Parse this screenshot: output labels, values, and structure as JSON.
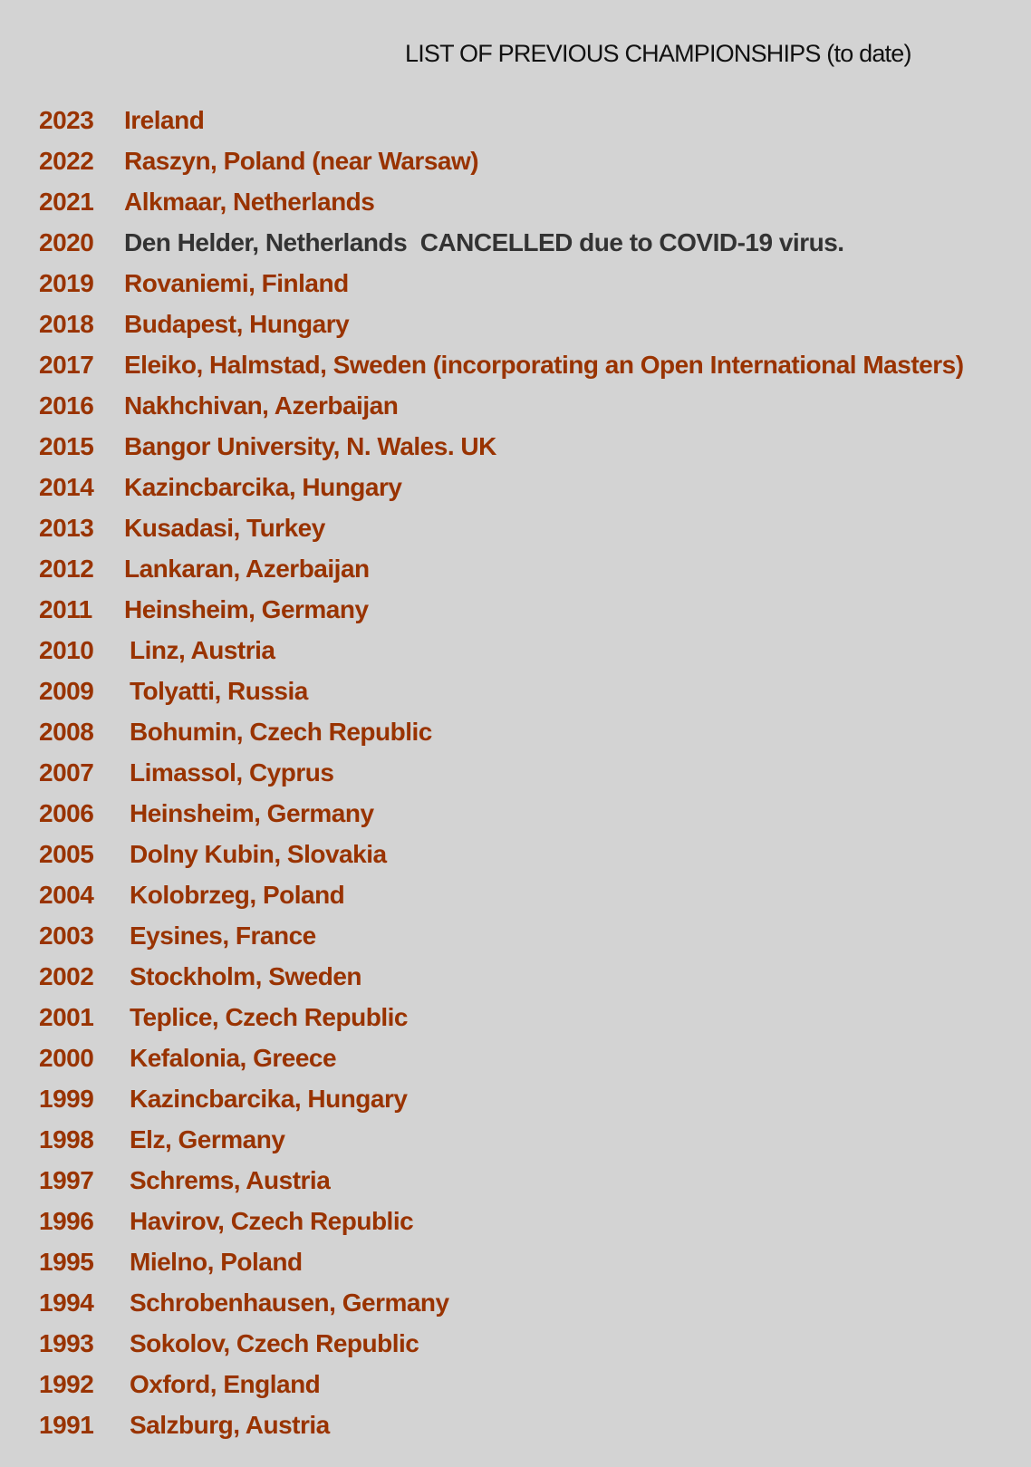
{
  "title": "LIST OF PREVIOUS CHAMPIONSHIPS (to date)",
  "colors": {
    "background": "#d3d3d3",
    "entry": "#993300",
    "cancelled": "#333333"
  },
  "championships": [
    {
      "year": "2023",
      "place": "Ireland"
    },
    {
      "year": "2022",
      "place": "Raszyn, Poland (near Warsaw)"
    },
    {
      "year": "2021",
      "place": "Alkmaar, Netherlands"
    },
    {
      "year": "2020",
      "place": "Den Helder, Netherlands  CANCELLED due to COVID-19 virus.",
      "cancelled": true
    },
    {
      "year": "2019",
      "place": "Rovaniemi, Finland"
    },
    {
      "year": "2018",
      "place": "Budapest, Hungary"
    },
    {
      "year": "2017",
      "place": "Eleiko, Halmstad, Sweden (incorporating an Open International Masters)"
    },
    {
      "year": "2016",
      "place": "Nakhchivan, Azerbaijan"
    },
    {
      "year": "2015",
      "place": "Bangor University, N. Wales. UK"
    },
    {
      "year": "2014",
      "place": "Kazincbarcika, Hungary"
    },
    {
      "year": "2013",
      "place": "Kusadasi, Turkey"
    },
    {
      "year": "2012",
      "place": "Lankaran, Azerbaijan"
    },
    {
      "year": "2011",
      "place": "Heinsheim, Germany"
    },
    {
      "year": "2010",
      "place": "Linz, Austria"
    },
    {
      "year": "2009",
      "place": "Tolyatti, Russia"
    },
    {
      "year": "2008",
      "place": "Bohumin, Czech Republic"
    },
    {
      "year": "2007",
      "place": "Limassol, Cyprus"
    },
    {
      "year": "2006",
      "place": "Heinsheim, Germany"
    },
    {
      "year": "2005",
      "place": "Dolny Kubin, Slovakia"
    },
    {
      "year": "2004",
      "place": "Kolobrzeg, Poland"
    },
    {
      "year": "2003",
      "place": "Eysines, France"
    },
    {
      "year": "2002",
      "place": "Stockholm, Sweden"
    },
    {
      "year": "2001",
      "place": "Teplice, Czech Republic"
    },
    {
      "year": "2000",
      "place": "Kefalonia, Greece"
    },
    {
      "year": "1999",
      "place": "Kazincbarcika, Hungary"
    },
    {
      "year": "1998",
      "place": "Elz, Germany"
    },
    {
      "year": "1997",
      "place": "Schrems, Austria"
    },
    {
      "year": "1996",
      "place": "Havirov, Czech Republic"
    },
    {
      "year": "1995",
      "place": "Mielno, Poland"
    },
    {
      "year": "1994",
      "place": "Schrobenhausen, Germany"
    },
    {
      "year": "1993",
      "place": "Sokolov, Czech Republic"
    },
    {
      "year": "1992",
      "place": "Oxford, England"
    },
    {
      "year": "1991",
      "place": "Salzburg, Austria"
    }
  ]
}
